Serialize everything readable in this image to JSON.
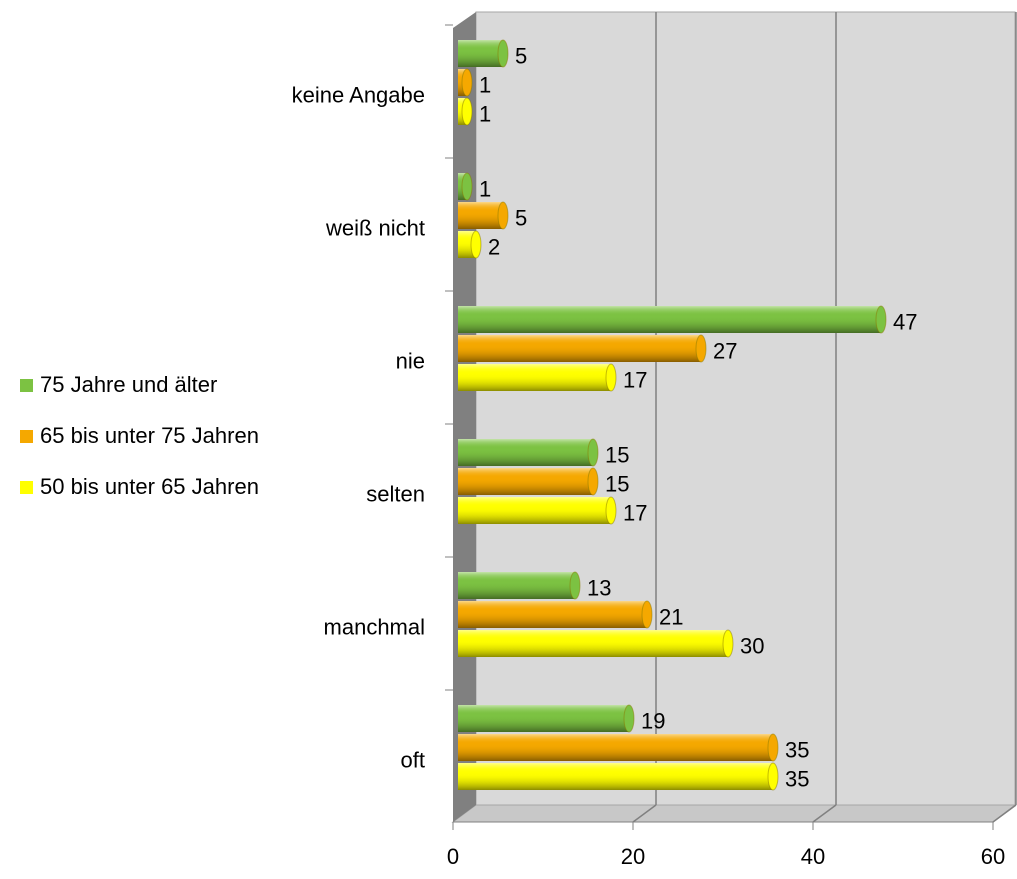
{
  "chart_data": {
    "type": "bar3d-horizontal",
    "categories": [
      "keine Angabe",
      "weiß nicht",
      "nie",
      "selten",
      "manchmal",
      "oft"
    ],
    "series": [
      {
        "name": "75 Jahre und älter",
        "color": "#7cc242",
        "values": [
          5,
          1,
          47,
          15,
          13,
          19
        ]
      },
      {
        "name": "65 bis unter 75 Jahren",
        "color": "#f5a800",
        "values": [
          1,
          5,
          27,
          15,
          21,
          35
        ]
      },
      {
        "name": "50 bis unter 65 Jahren",
        "color": "#ffff00",
        "values": [
          1,
          2,
          17,
          17,
          30,
          35
        ]
      }
    ],
    "xlim": [
      0,
      60
    ],
    "xticks": [
      0,
      20,
      40,
      60
    ],
    "grid": true,
    "legend": "left"
  }
}
